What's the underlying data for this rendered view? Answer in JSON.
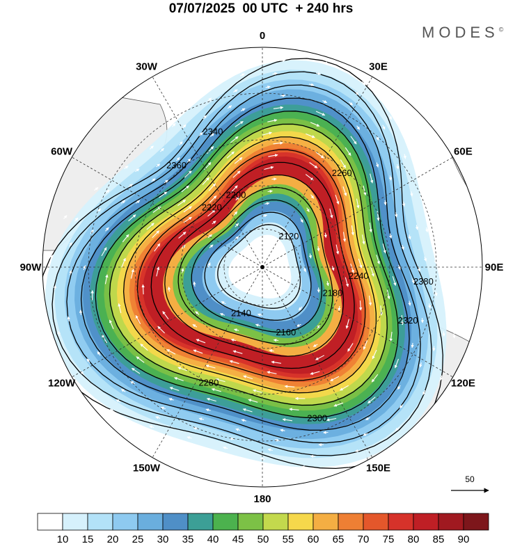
{
  "title": "07/07/2025  00 UTC  + 240 hrs",
  "brand": {
    "name": "MODES",
    "mark": "©"
  },
  "map": {
    "projection": "polar stereographic, North Pole",
    "lon_labels": [
      {
        "label": "0",
        "lon": 0
      },
      {
        "label": "30E",
        "lon": 30
      },
      {
        "label": "60E",
        "lon": 60
      },
      {
        "label": "90E",
        "lon": 90
      },
      {
        "label": "120E",
        "lon": 120
      },
      {
        "label": "150E",
        "lon": 150
      },
      {
        "label": "180",
        "lon": 180
      },
      {
        "label": "150W",
        "lon": -150
      },
      {
        "label": "120W",
        "lon": -120
      },
      {
        "label": "90W",
        "lon": -90
      },
      {
        "label": "60W",
        "lon": -60
      },
      {
        "label": "30W",
        "lon": -30
      }
    ],
    "vector_reference": "50"
  },
  "chart_data": {
    "type": "heatmap",
    "contour_labels": [
      "2120",
      "2140",
      "2160",
      "2180",
      "2200",
      "2220",
      "2240",
      "2260",
      "2280",
      "2300",
      "2320",
      "2340",
      "2360",
      "2380"
    ],
    "contour_levels": [
      2120,
      2140,
      2160,
      2180,
      2200,
      2220,
      2240,
      2260,
      2280,
      2300,
      2320,
      2340,
      2360,
      2380
    ],
    "colorbar": {
      "labels": [
        "10",
        "15",
        "20",
        "25",
        "30",
        "35",
        "40",
        "45",
        "50",
        "55",
        "60",
        "65",
        "70",
        "75",
        "80",
        "85",
        "90"
      ],
      "colors": [
        "#ffffff",
        "#d6f1fc",
        "#b3e2f8",
        "#8ecaf0",
        "#6aaede",
        "#4f8fc7",
        "#3c9f96",
        "#4cb24e",
        "#7cc146",
        "#c3d94d",
        "#f6d84b",
        "#f4ae43",
        "#ee7f34",
        "#e4572b",
        "#d6322a",
        "#bf1f25",
        "#a01920",
        "#7d161b"
      ]
    }
  }
}
